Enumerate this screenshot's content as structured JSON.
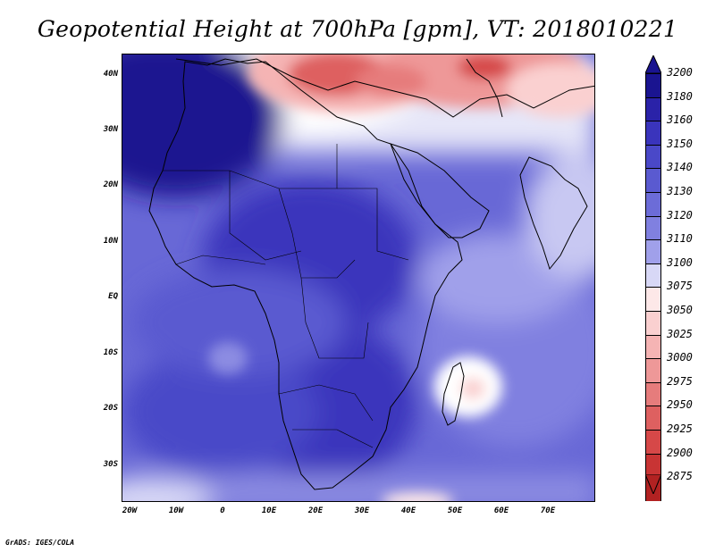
{
  "title": "Geopotential Height at 700hPa [gpm], VT: 2018010221",
  "lat_labels": [
    "40N",
    "30N",
    "20N",
    "10N",
    "EQ",
    "10S",
    "20S",
    "30S"
  ],
  "lon_labels": [
    "20W",
    "10W",
    "0",
    "10E",
    "20E",
    "30E",
    "40E",
    "50E",
    "60E",
    "70E"
  ],
  "colorbar": {
    "levels": [
      "3200",
      "3180",
      "3160",
      "3150",
      "3140",
      "3130",
      "3120",
      "3110",
      "3100",
      "3075",
      "3050",
      "3025",
      "3000",
      "2975",
      "2950",
      "2925",
      "2900",
      "2875"
    ],
    "colors": [
      "#1a1490",
      "#2a22a8",
      "#3a34bc",
      "#4a48c8",
      "#5a5ad0",
      "#6c6cd8",
      "#8080e0",
      "#a0a0ea",
      "#d8d8f6",
      "#fde8e8",
      "#fad0d0",
      "#f5b4b4",
      "#ee9898",
      "#e67c7c",
      "#de6060",
      "#d64848",
      "#c83434",
      "#b22222"
    ],
    "top_color": "#1a1490",
    "bottom_color": "#b22222"
  },
  "credit": "GrADS: IGES/COLA"
}
